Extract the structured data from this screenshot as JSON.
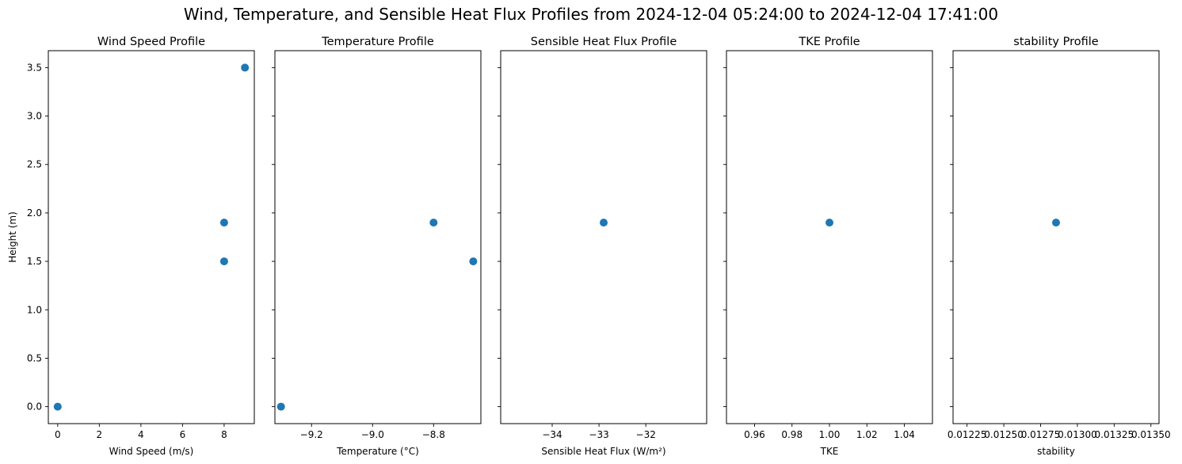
{
  "figure": {
    "title": "Wind, Temperature, and Sensible Heat Flux Profiles from 2024-12-04 05:24:00 to 2024-12-04 17:41:00"
  },
  "chart_data": [
    {
      "type": "scatter",
      "title": "Wind Speed Profile",
      "xlabel": "Wind Speed (m/s)",
      "ylabel": "Height (m)",
      "xlim": [
        -0.45,
        9.45
      ],
      "ylim": [
        -0.175,
        3.675
      ],
      "xticks": [
        0,
        2,
        4,
        6,
        8
      ],
      "xtick_labels": [
        "0",
        "2",
        "4",
        "6",
        "8"
      ],
      "yticks": [
        0.0,
        0.5,
        1.0,
        1.5,
        2.0,
        2.5,
        3.0,
        3.5
      ],
      "ytick_labels": [
        "0.0",
        "0.5",
        "1.0",
        "1.5",
        "2.0",
        "2.5",
        "3.0",
        "3.5"
      ],
      "show_ytick_labels": true,
      "x": [
        0,
        8,
        8,
        9
      ],
      "y": [
        0.0,
        1.5,
        1.9,
        3.5
      ],
      "color": "#1f77b4"
    },
    {
      "type": "scatter",
      "title": "Temperature Profile",
      "xlabel": "Temperature (°C)",
      "ylabel": "",
      "xlim": [
        -9.32,
        -8.645
      ],
      "ylim": [
        -0.175,
        3.675
      ],
      "xticks": [
        -9.2,
        -9.0,
        -8.8
      ],
      "xtick_labels": [
        "−9.2",
        "−9.0",
        "−8.8"
      ],
      "yticks": [
        0.0,
        0.5,
        1.0,
        1.5,
        2.0,
        2.5,
        3.0,
        3.5
      ],
      "ytick_labels": [],
      "show_ytick_labels": false,
      "x": [
        -9.3,
        -8.8,
        -8.67
      ],
      "y": [
        0.0,
        1.9,
        1.5
      ],
      "color": "#1f77b4"
    },
    {
      "type": "scatter",
      "title": "Sensible Heat Flux Profile",
      "xlabel": "Sensible Heat Flux (W/m²)",
      "ylabel": "",
      "xlim": [
        -35.1,
        -30.7
      ],
      "ylim": [
        -0.175,
        3.675
      ],
      "xticks": [
        -34,
        -33,
        -32
      ],
      "xtick_labels": [
        "−34",
        "−33",
        "−32"
      ],
      "yticks": [
        0.0,
        0.5,
        1.0,
        1.5,
        2.0,
        2.5,
        3.0,
        3.5
      ],
      "ytick_labels": [],
      "show_ytick_labels": false,
      "x": [
        -32.9
      ],
      "y": [
        1.9
      ],
      "color": "#1f77b4"
    },
    {
      "type": "scatter",
      "title": "TKE Profile",
      "xlabel": "TKE",
      "ylabel": "",
      "xlim": [
        0.945,
        1.055
      ],
      "ylim": [
        -0.175,
        3.675
      ],
      "xticks": [
        0.96,
        0.98,
        1.0,
        1.02,
        1.04
      ],
      "xtick_labels": [
        "0.96",
        "0.98",
        "1.00",
        "1.02",
        "1.04"
      ],
      "yticks": [
        0.0,
        0.5,
        1.0,
        1.5,
        2.0,
        2.5,
        3.0,
        3.5
      ],
      "ytick_labels": [],
      "show_ytick_labels": false,
      "x": [
        1.0
      ],
      "y": [
        1.9
      ],
      "color": "#1f77b4"
    },
    {
      "type": "scatter",
      "title": "stability Profile",
      "xlabel": "stability",
      "ylabel": "",
      "xlim": [
        0.012155,
        0.013555
      ],
      "ylim": [
        -0.175,
        3.675
      ],
      "xticks": [
        0.01225,
        0.0125,
        0.01275,
        0.013,
        0.01325,
        0.0135
      ],
      "xtick_labels": [
        "0.01225",
        "0.01250",
        "0.01275",
        "0.01300",
        "0.01325",
        "0.01350"
      ],
      "yticks": [
        0.0,
        0.5,
        1.0,
        1.5,
        2.0,
        2.5,
        3.0,
        3.5
      ],
      "ytick_labels": [],
      "show_ytick_labels": false,
      "x": [
        0.012855
      ],
      "y": [
        1.9
      ],
      "color": "#1f77b4"
    }
  ]
}
